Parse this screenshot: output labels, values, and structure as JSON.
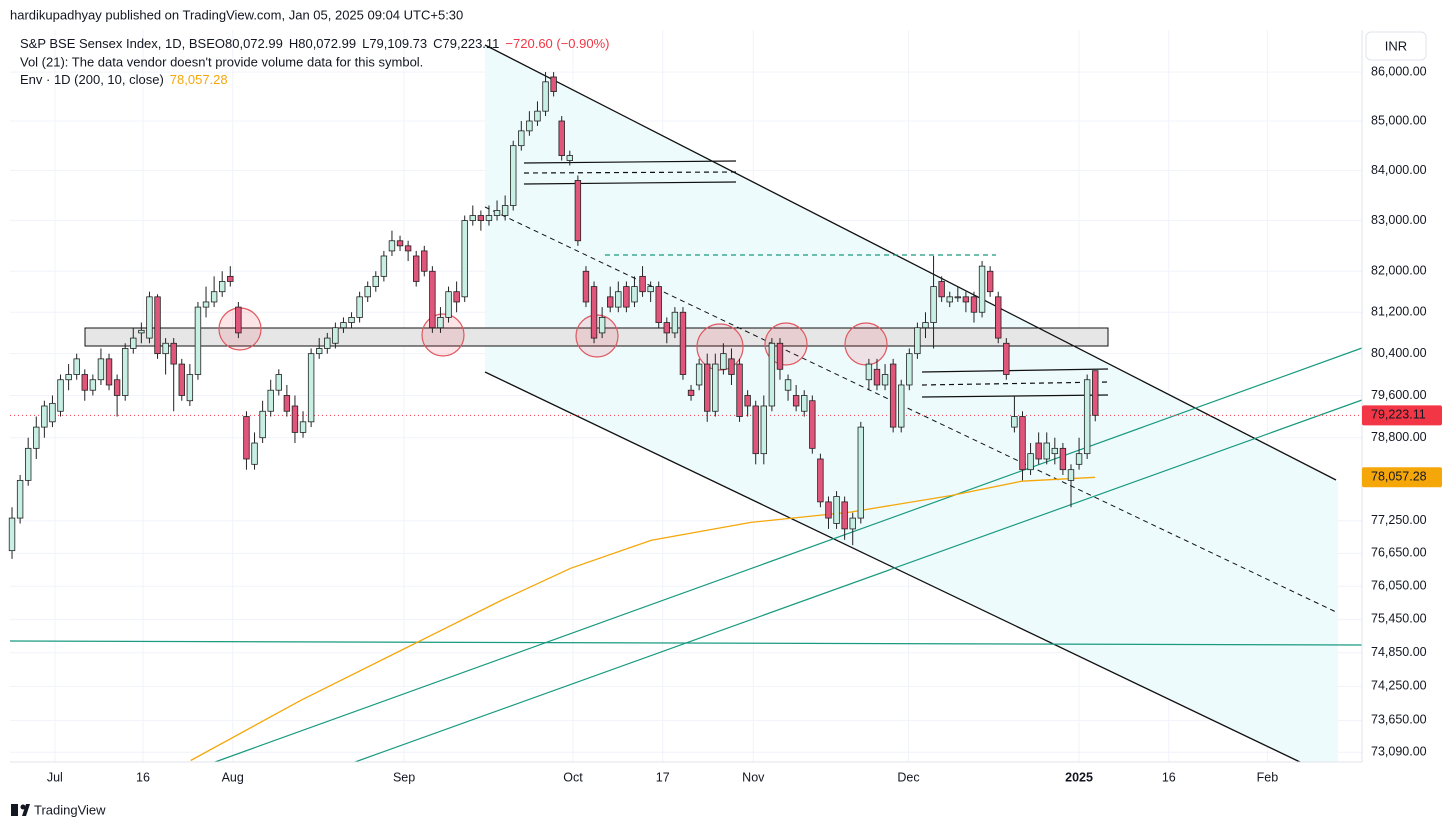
{
  "published": "hardikupadhyay published on TradingView.com, Jan 05, 2025 09:04 UTC+5:30",
  "brand": "TradingView",
  "chart_data": {
    "type": "candlestick",
    "title": "S&P BSE Sensex Index, 1D, BSE",
    "ohlc_legend": [
      {
        "key": "O",
        "value": "80,072.99"
      },
      {
        "key": "H",
        "value": "80,072.99"
      },
      {
        "key": "L",
        "value": "79,109.73"
      },
      {
        "key": "C",
        "value": "79,223.11"
      }
    ],
    "change": "−720.60 (−0.90%)",
    "volume_note": "Vol (21): The data vendor doesn't provide volume data for this symbol.",
    "currency": "INR",
    "log_scale": true,
    "grid": true,
    "up_color": "#c8efe4",
    "down_color": "#e0557a",
    "last_price_label": "79,223.11",
    "last_price_color": "#f23645",
    "xlim": [
      -0.25,
      167
    ],
    "xticks": [
      {
        "value": 5.3,
        "label": "Jul"
      },
      {
        "value": 16.2,
        "label": "16"
      },
      {
        "value": 27.3,
        "label": "Aug"
      },
      {
        "value": 48.5,
        "label": "Sep"
      },
      {
        "value": 69.4,
        "label": "Oct"
      },
      {
        "value": 80.5,
        "label": "17"
      },
      {
        "value": 91.7,
        "label": "Nov"
      },
      {
        "value": 110.9,
        "label": "Dec"
      },
      {
        "value": 132,
        "label": "2025"
      },
      {
        "value": 143.1,
        "label": "16"
      },
      {
        "value": 155.3,
        "label": "Feb"
      }
    ],
    "ylim": [
      72920,
      86870
    ],
    "yticks": [
      {
        "value": 86000,
        "label": "86,000.00"
      },
      {
        "value": 85000,
        "label": "85,000.00"
      },
      {
        "value": 84000,
        "label": "84,000.00"
      },
      {
        "value": 83000,
        "label": "83,000.00"
      },
      {
        "value": 82000,
        "label": "82,000.00"
      },
      {
        "value": 81200,
        "label": "81,200.00"
      },
      {
        "value": 80400,
        "label": "80,400.00"
      },
      {
        "value": 79600,
        "label": "79,600.00"
      },
      {
        "value": 78800,
        "label": "78,800.00"
      },
      {
        "value": 77250,
        "label": "77,250.00"
      },
      {
        "value": 76650,
        "label": "76,650.00"
      },
      {
        "value": 76050,
        "label": "76,050.00"
      },
      {
        "value": 75450,
        "label": "75,450.00"
      },
      {
        "value": 74850,
        "label": "74,850.00"
      },
      {
        "value": 74250,
        "label": "74,250.00"
      },
      {
        "value": 73650,
        "label": "73,650.00"
      },
      {
        "value": 73090,
        "label": "73,090.00"
      }
    ],
    "open": [
      76700,
      77300,
      78000,
      78600,
      79000,
      79100,
      79300,
      79900,
      80000,
      80000,
      79700,
      79900,
      80300,
      79900,
      79600,
      80500,
      80800,
      80700,
      81500,
      80400,
      80600,
      80200,
      79500,
      80000,
      81300,
      81400,
      81600,
      81900,
      81300,
      79200,
      78300,
      78800,
      79300,
      79700,
      79600,
      79400,
      78900,
      79100,
      80400,
      80500,
      80600,
      80900,
      81000,
      81100,
      81500,
      81700,
      81900,
      82400,
      82600,
      82500,
      82300,
      82400,
      82000,
      80900,
      81100,
      81600,
      81500,
      83000,
      83100,
      83000,
      83100,
      83100,
      83300,
      84500,
      84800,
      85000,
      85200,
      85900,
      85000,
      84200,
      83800,
      82000,
      81700,
      80800,
      81500,
      81300,
      81700,
      81400,
      81900,
      81600,
      81700,
      81000,
      80800,
      81200,
      79700,
      79800,
      80200,
      79300,
      80100,
      80300,
      80200,
      79600,
      79400,
      78500,
      79400,
      80600,
      79700,
      79600,
      79300,
      79500,
      78400,
      77600,
      77200,
      77600,
      77100,
      77300,
      79900,
      80100,
      79800,
      80200,
      79000,
      79800,
      80400,
      80900,
      81000,
      81800,
      81400,
      81500,
      81500,
      81500,
      81200,
      82000,
      81500,
      80600,
      79000,
      79200,
      78200,
      78700,
      78400,
      78500,
      78600,
      78000,
      78300,
      78500,
      80072.99
    ],
    "high": [
      77500,
      78100,
      78800,
      79200,
      79500,
      79600,
      80000,
      80200,
      80400,
      80100,
      80000,
      80500,
      80400,
      80000,
      80600,
      80900,
      81000,
      81600,
      81550,
      80700,
      80700,
      80300,
      80200,
      81400,
      81700,
      81900,
      82000,
      82100,
      81400,
      79300,
      78900,
      79500,
      79900,
      80100,
      79800,
      79600,
      79300,
      80500,
      80700,
      80800,
      81000,
      81100,
      81200,
      81600,
      81800,
      82000,
      82400,
      82800,
      82700,
      82600,
      82400,
      82500,
      82100,
      81300,
      81700,
      81800,
      83100,
      83300,
      83200,
      83300,
      83400,
      83500,
      84600,
      85000,
      85200,
      85400,
      86000,
      86000,
      85100,
      84400,
      83900,
      82100,
      81800,
      81300,
      81700,
      81800,
      81800,
      81900,
      82100,
      81800,
      81800,
      81100,
      81300,
      81300,
      79800,
      80300,
      80400,
      80400,
      80600,
      80500,
      80300,
      79700,
      79500,
      79600,
      80700,
      80700,
      80000,
      79800,
      79700,
      79600,
      78500,
      77700,
      77800,
      77700,
      77400,
      79100,
      80300,
      80300,
      80200,
      80300,
      79900,
      80500,
      81000,
      81200,
      82300,
      81900,
      81600,
      81700,
      81600,
      81600,
      82200,
      82100,
      81600,
      80700,
      79600,
      79300,
      78700,
      78900,
      78900,
      78800,
      78700,
      78300,
      78800,
      80000,
      80072.99
    ],
    "low": [
      76550,
      77200,
      77900,
      78400,
      78800,
      79000,
      79200,
      79700,
      79900,
      79500,
      79600,
      79800,
      79700,
      79200,
      79500,
      80400,
      80600,
      80600,
      80300,
      80000,
      79300,
      79500,
      79400,
      79900,
      81100,
      81300,
      81500,
      81700,
      80700,
      78200,
      78200,
      78700,
      79200,
      79600,
      79200,
      78700,
      78800,
      79000,
      80300,
      80400,
      80500,
      80800,
      80900,
      81000,
      81400,
      81600,
      81800,
      82300,
      82400,
      82200,
      81700,
      81900,
      80800,
      80800,
      81000,
      81200,
      81400,
      82900,
      82800,
      82900,
      83000,
      83000,
      83200,
      84400,
      84700,
      84900,
      85100,
      85500,
      84200,
      84100,
      82500,
      81300,
      80600,
      80700,
      81200,
      81200,
      81200,
      81300,
      81500,
      81400,
      80900,
      80600,
      80700,
      79900,
      79500,
      79700,
      79100,
      79200,
      80000,
      79800,
      79100,
      79200,
      78300,
      78300,
      79300,
      79900,
      79500,
      79300,
      79200,
      78500,
      77500,
      77100,
      77100,
      76900,
      76800,
      77200,
      79700,
      79700,
      79700,
      78900,
      78900,
      79700,
      80300,
      80700,
      80500,
      81400,
      81300,
      81400,
      81200,
      81000,
      81100,
      81500,
      80600,
      79900,
      78900,
      78000,
      78100,
      78300,
      78300,
      78300,
      78100,
      77500,
      78200,
      78400,
      79109.73
    ],
    "close": [
      77300,
      78000,
      78600,
      79000,
      79400,
      79450,
      79900,
      80000,
      80300,
      79700,
      79900,
      80300,
      79800,
      79600,
      80500,
      80700,
      80850,
      81500,
      80400,
      80600,
      80200,
      79600,
      80000,
      81300,
      81400,
      81600,
      81800,
      81800,
      80800,
      78400,
      78700,
      79300,
      79700,
      80000,
      79300,
      78900,
      79100,
      80400,
      80500,
      80700,
      80900,
      81000,
      81100,
      81500,
      81700,
      81900,
      82300,
      82600,
      82500,
      82400,
      81800,
      82000,
      80900,
      81100,
      81600,
      81400,
      83000,
      83100,
      83000,
      83100,
      83200,
      83300,
      84500,
      84800,
      85000,
      85200,
      85800,
      85600,
      84300,
      84300,
      82600,
      81400,
      80700,
      81100,
      81300,
      81600,
      81300,
      81700,
      81600,
      81700,
      81000,
      80800,
      81200,
      80000,
      79600,
      80200,
      79300,
      80200,
      80400,
      80000,
      79200,
      79400,
      78500,
      79400,
      80600,
      80100,
      79900,
      79400,
      79600,
      78600,
      77600,
      77300,
      77700,
      77100,
      77300,
      79000,
      80200,
      79800,
      80000,
      79000,
      79800,
      80400,
      80900,
      81000,
      81700,
      81500,
      81500,
      81500,
      81400,
      81200,
      82100,
      81600,
      80700,
      80000,
      79200,
      78200,
      78500,
      78400,
      78700,
      78600,
      78200,
      78200,
      78500,
      79900,
      79223.11
    ],
    "overlay": {
      "name": "Env · 1D (200, 10, close)",
      "value": 78057.28,
      "value_label": "78,057.28",
      "color": "#f5a70a",
      "x": [
        22.1,
        35.7,
        48.1,
        60.5,
        69.1,
        79.1,
        91.4,
        103.8,
        116.2,
        124.9,
        134
      ],
      "values": [
        72946,
        74003,
        74891,
        75792,
        76377,
        76893,
        77221,
        77413,
        77719,
        77985,
        78057.28
      ]
    }
  }
}
